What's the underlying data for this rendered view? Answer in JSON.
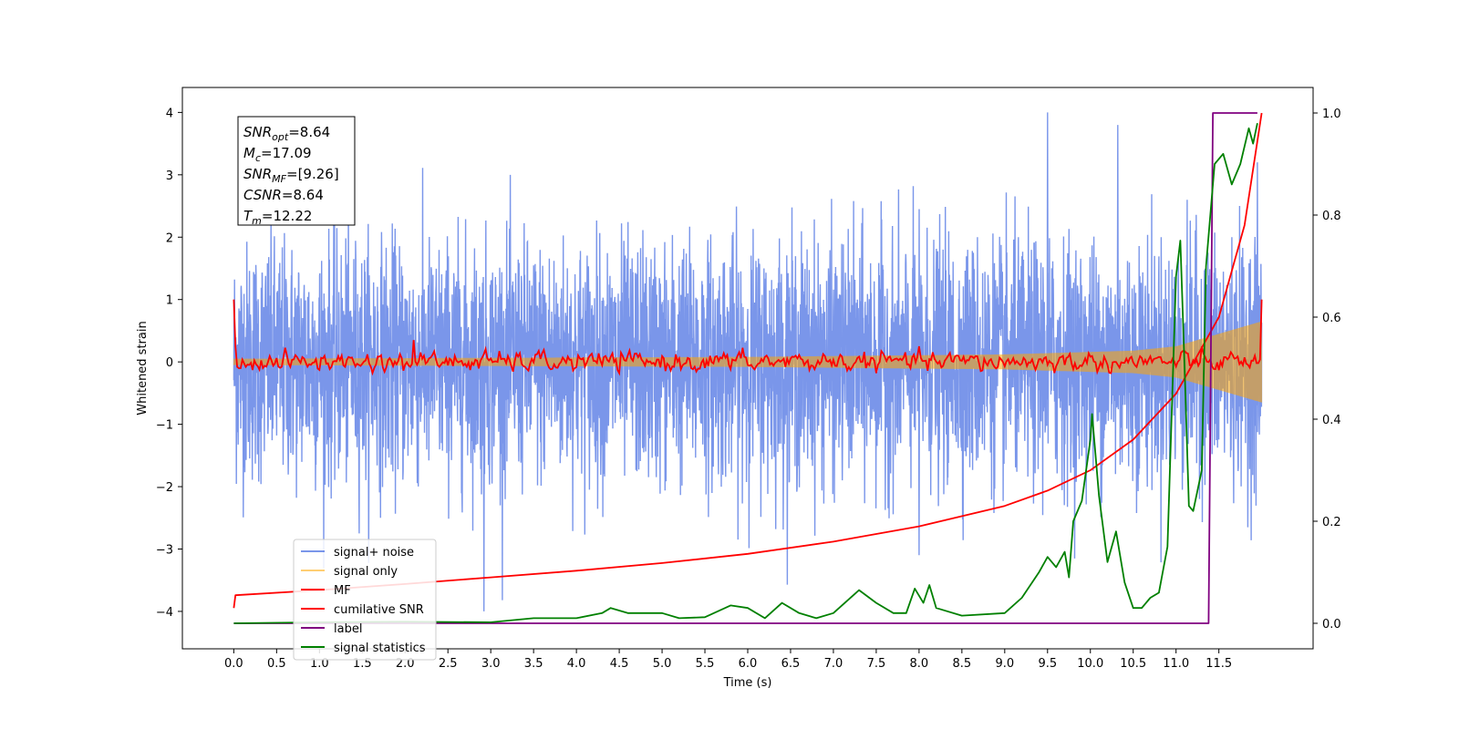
{
  "chart_data": {
    "type": "line",
    "xlabel": "Time (s)",
    "ylabel": "Whitened strain",
    "xlim": [
      -0.6,
      12.6
    ],
    "ylim": [
      -4.6,
      4.4
    ],
    "y2lim": [
      -0.05,
      1.05
    ],
    "x_ticks": [
      0.0,
      0.5,
      1.0,
      1.5,
      2.0,
      2.5,
      3.0,
      3.5,
      4.0,
      4.5,
      5.0,
      5.5,
      6.0,
      6.5,
      7.0,
      7.5,
      8.0,
      8.5,
      9.0,
      9.5,
      10.0,
      10.5,
      11.0,
      11.5
    ],
    "x_tick_labels": [
      "0.0",
      "0.5",
      "1.0",
      "1.5",
      "2.0",
      "2.5",
      "3.0",
      "3.5",
      "4.0",
      "4.5",
      "5.0",
      "5.5",
      "6.0",
      "6.5",
      "7.0",
      "7.5",
      "8.0",
      "8.5",
      "9.0",
      "9.5",
      "10.0",
      "10.5",
      "11.0",
      "11.5"
    ],
    "y_ticks": [
      -4,
      -3,
      -2,
      -1,
      0,
      1,
      2,
      3,
      4
    ],
    "y_tick_labels": [
      "−4",
      "−3",
      "−2",
      "−1",
      "0",
      "1",
      "2",
      "3",
      "4"
    ],
    "y2_ticks": [
      0.0,
      0.2,
      0.4,
      0.6,
      0.8,
      1.0
    ],
    "y2_tick_labels": [
      "0.0",
      "0.2",
      "0.4",
      "0.6",
      "0.8",
      "1.0"
    ],
    "legend_position": "lower-left",
    "annotation_lines": [
      {
        "sym": "SNR",
        "sub": "opt",
        "val": "=8.64"
      },
      {
        "sym": "M",
        "sub": "c",
        "val": "=17.09"
      },
      {
        "sym": "SNR",
        "sub": "MF",
        "val": "=[9.26]"
      },
      {
        "sym": "CSNR",
        "sub": "",
        "val": "=8.64"
      },
      {
        "sym": "T",
        "sub": "m",
        "val": "=12.22"
      }
    ],
    "series": [
      {
        "name": "signal+ noise",
        "color": "#4169e1",
        "axis": "left",
        "summary": "dense whitened noise, roughly Gaussian with sigma about 1, spanning 0 to 12.0 s; peaks near ±4",
        "x_range": [
          0.0,
          12.0
        ],
        "amplitude_sigma": 1.0,
        "notable_spikes": [
          [
            2.92,
            -4.0
          ],
          [
            9.5,
            4.0
          ],
          [
            10.32,
            3.8
          ],
          [
            8.0,
            -3.1
          ],
          [
            11.95,
            3.2
          ]
        ]
      },
      {
        "name": "signal only",
        "color": "#ffa500",
        "axis": "left",
        "summary": "chirp oscillating around 0 with amplitude growing from ~0.05 to ~0.65 toward 12.0 s",
        "x_range": [
          0.0,
          12.0
        ],
        "envelope": [
          [
            0.0,
            0.05
          ],
          [
            6.0,
            0.08
          ],
          [
            9.0,
            0.12
          ],
          [
            10.5,
            0.18
          ],
          [
            11.0,
            0.25
          ],
          [
            11.5,
            0.45
          ],
          [
            12.0,
            0.65
          ]
        ]
      },
      {
        "name": "MF",
        "color": "#ff0000",
        "axis": "left",
        "summary": "matched-filter output fluctuating around 0 (±0.2), starts at 1.0 at t=0 and ends at 1.0 at t=12.0",
        "points": [
          [
            0.0,
            1.0
          ],
          [
            0.03,
            0.25
          ],
          [
            0.08,
            -0.1
          ],
          [
            0.15,
            0.1
          ],
          [
            2.1,
            0.35
          ],
          [
            2.2,
            0.05
          ],
          [
            6.0,
            -0.05
          ],
          [
            11.95,
            0.0
          ],
          [
            12.0,
            1.0
          ]
        ]
      },
      {
        "name": "cumilative SNR",
        "color": "#ff0000",
        "axis": "right",
        "summary": "monotonically increasing curve on right axis",
        "points": [
          [
            0.0,
            0.03
          ],
          [
            0.02,
            0.055
          ],
          [
            1.0,
            0.065
          ],
          [
            2.0,
            0.077
          ],
          [
            3.0,
            0.09
          ],
          [
            4.0,
            0.103
          ],
          [
            5.0,
            0.118
          ],
          [
            6.0,
            0.136
          ],
          [
            7.0,
            0.16
          ],
          [
            8.0,
            0.19
          ],
          [
            9.0,
            0.23
          ],
          [
            9.5,
            0.26
          ],
          [
            10.0,
            0.3
          ],
          [
            10.5,
            0.36
          ],
          [
            11.0,
            0.45
          ],
          [
            11.5,
            0.6
          ],
          [
            11.8,
            0.78
          ],
          [
            12.0,
            1.0
          ]
        ]
      },
      {
        "name": "label",
        "color": "#800080",
        "axis": "right",
        "summary": "step function, 0 until ~11.4 s, then 1.0 until 11.95 s",
        "points": [
          [
            0.0,
            0.0
          ],
          [
            11.38,
            0.0
          ],
          [
            11.43,
            1.0
          ],
          [
            11.95,
            1.0
          ]
        ]
      },
      {
        "name": "signal statistics",
        "color": "#008000",
        "axis": "right",
        "points": [
          [
            0.0,
            0.0
          ],
          [
            1.0,
            0.002
          ],
          [
            2.0,
            0.003
          ],
          [
            3.0,
            0.002
          ],
          [
            3.5,
            0.01
          ],
          [
            4.0,
            0.01
          ],
          [
            4.3,
            0.02
          ],
          [
            4.4,
            0.03
          ],
          [
            4.6,
            0.02
          ],
          [
            4.8,
            0.02
          ],
          [
            5.0,
            0.02
          ],
          [
            5.2,
            0.01
          ],
          [
            5.5,
            0.012
          ],
          [
            5.8,
            0.035
          ],
          [
            6.0,
            0.03
          ],
          [
            6.2,
            0.01
          ],
          [
            6.4,
            0.04
          ],
          [
            6.6,
            0.02
          ],
          [
            6.8,
            0.01
          ],
          [
            7.0,
            0.02
          ],
          [
            7.3,
            0.065
          ],
          [
            7.5,
            0.04
          ],
          [
            7.7,
            0.02
          ],
          [
            7.85,
            0.02
          ],
          [
            7.95,
            0.068
          ],
          [
            8.05,
            0.04
          ],
          [
            8.12,
            0.075
          ],
          [
            8.2,
            0.03
          ],
          [
            8.5,
            0.015
          ],
          [
            9.0,
            0.02
          ],
          [
            9.2,
            0.05
          ],
          [
            9.4,
            0.1
          ],
          [
            9.5,
            0.13
          ],
          [
            9.6,
            0.11
          ],
          [
            9.7,
            0.14
          ],
          [
            9.75,
            0.09
          ],
          [
            9.8,
            0.2
          ],
          [
            9.9,
            0.24
          ],
          [
            10.0,
            0.36
          ],
          [
            10.02,
            0.41
          ],
          [
            10.1,
            0.25
          ],
          [
            10.2,
            0.12
          ],
          [
            10.3,
            0.18
          ],
          [
            10.4,
            0.08
          ],
          [
            10.5,
            0.03
          ],
          [
            10.6,
            0.03
          ],
          [
            10.7,
            0.05
          ],
          [
            10.8,
            0.06
          ],
          [
            10.9,
            0.15
          ],
          [
            11.0,
            0.68
          ],
          [
            11.05,
            0.75
          ],
          [
            11.1,
            0.5
          ],
          [
            11.15,
            0.23
          ],
          [
            11.2,
            0.22
          ],
          [
            11.3,
            0.3
          ],
          [
            11.35,
            0.7
          ],
          [
            11.45,
            0.9
          ],
          [
            11.55,
            0.92
          ],
          [
            11.65,
            0.86
          ],
          [
            11.75,
            0.9
          ],
          [
            11.85,
            0.97
          ],
          [
            11.9,
            0.94
          ],
          [
            11.95,
            0.98
          ]
        ]
      }
    ]
  }
}
